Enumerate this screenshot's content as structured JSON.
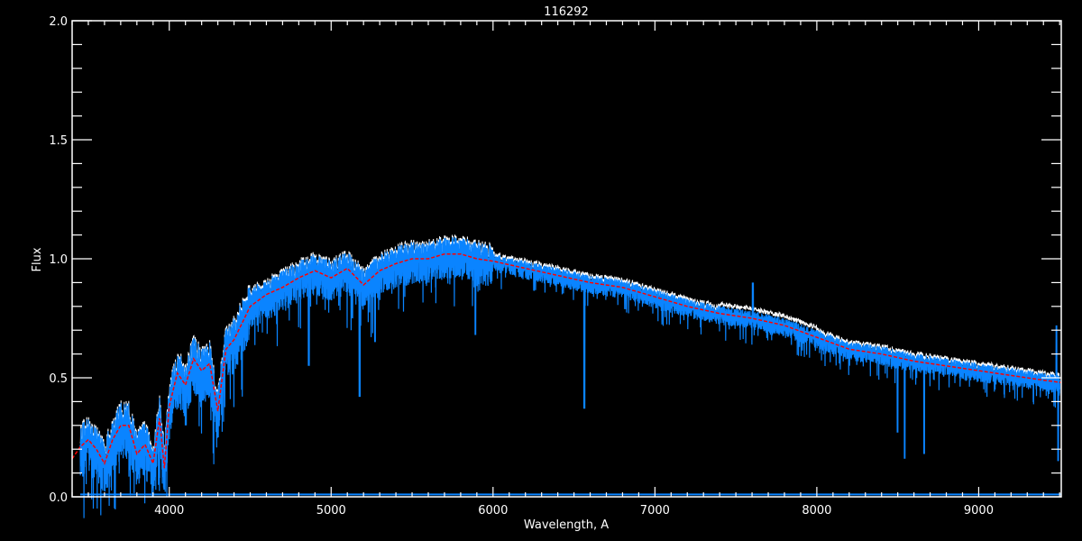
{
  "chart_data": {
    "type": "line",
    "title": "116292",
    "xlabel": "Wavelength, A",
    "ylabel": "Flux",
    "xlim": [
      3400,
      9510
    ],
    "ylim": [
      0.0,
      2.0
    ],
    "x_ticks": [
      4000,
      5000,
      6000,
      7000,
      8000,
      9000
    ],
    "x_tick_labels": [
      "4000",
      "5000",
      "6000",
      "7000",
      "8000",
      "9000"
    ],
    "x_minor_step": 100,
    "y_ticks": [
      0.0,
      0.5,
      1.0,
      1.5,
      2.0
    ],
    "y_tick_labels": [
      "0.0",
      "0.5",
      "1.0",
      "1.5",
      "2.0"
    ],
    "y_minor_step": 0.1,
    "grid": false,
    "colors": {
      "background": "#000000",
      "axes": "#ffffff",
      "observed": "#0a84ff",
      "reference": "#ffffff",
      "model": "#ff0000"
    },
    "series": [
      {
        "role": "model-smooth",
        "style": "dashed",
        "color": "#ff0000",
        "x": [
          3400,
          3450,
          3500,
          3550,
          3600,
          3650,
          3700,
          3750,
          3800,
          3850,
          3900,
          3940,
          3970,
          4000,
          4050,
          4100,
          4150,
          4200,
          4250,
          4300,
          4350,
          4400,
          4500,
          4600,
          4700,
          4800,
          4900,
          5000,
          5100,
          5200,
          5300,
          5400,
          5500,
          5600,
          5700,
          5800,
          5900,
          6000,
          6200,
          6400,
          6600,
          6800,
          7000,
          7200,
          7400,
          7600,
          7800,
          8000,
          8200,
          8400,
          8600,
          8800,
          9000,
          9200,
          9400,
          9510
        ],
        "y": [
          0.16,
          0.21,
          0.24,
          0.2,
          0.14,
          0.24,
          0.3,
          0.3,
          0.18,
          0.22,
          0.14,
          0.33,
          0.12,
          0.38,
          0.52,
          0.47,
          0.58,
          0.53,
          0.56,
          0.36,
          0.62,
          0.66,
          0.8,
          0.85,
          0.88,
          0.92,
          0.95,
          0.92,
          0.96,
          0.89,
          0.95,
          0.98,
          1.0,
          1.0,
          1.02,
          1.02,
          1.0,
          0.99,
          0.96,
          0.93,
          0.9,
          0.88,
          0.84,
          0.8,
          0.77,
          0.75,
          0.72,
          0.67,
          0.62,
          0.6,
          0.57,
          0.55,
          0.53,
          0.51,
          0.49,
          0.48
        ]
      },
      {
        "role": "observed",
        "color": "#0a84ff",
        "absorption_lines": [
          {
            "x": 3934,
            "depth_to": 0.05
          },
          {
            "x": 3968,
            "depth_to": 0.03
          },
          {
            "x": 4101,
            "depth_to": 0.3
          },
          {
            "x": 4300,
            "depth_to": 0.25
          },
          {
            "x": 4861,
            "depth_to": 0.55
          },
          {
            "x": 5175,
            "depth_to": 0.42
          },
          {
            "x": 5270,
            "depth_to": 0.65
          },
          {
            "x": 5890,
            "depth_to": 0.68
          },
          {
            "x": 6563,
            "depth_to": 0.37
          },
          {
            "x": 8498,
            "depth_to": 0.27
          },
          {
            "x": 8542,
            "depth_to": 0.16
          },
          {
            "x": 8662,
            "depth_to": 0.18
          },
          {
            "x": 9490,
            "depth_to": 0.15
          }
        ],
        "emission_spikes": [
          {
            "x": 7605,
            "peak": 0.9
          },
          {
            "x": 9480,
            "peak": 0.72
          }
        ]
      },
      {
        "role": "error",
        "color": "#0a84ff",
        "level": 0.01
      }
    ]
  }
}
